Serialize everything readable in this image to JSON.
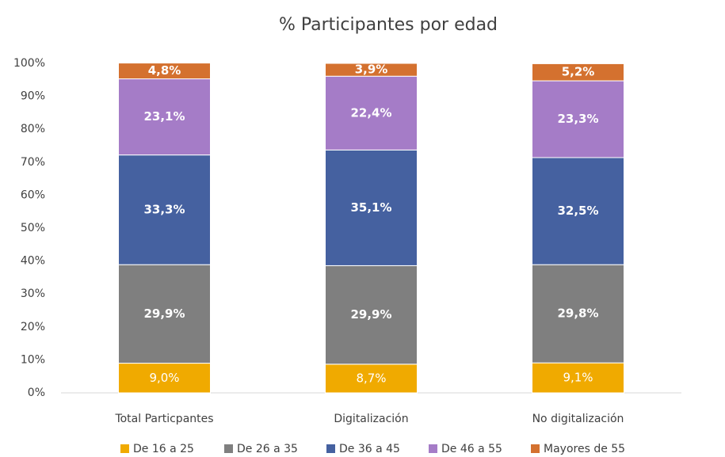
{
  "chart_data": {
    "type": "stacked_bar",
    "title": "% Participantes por edad",
    "categories": [
      "Total Particpantes",
      "Digitalización",
      "No digitalización"
    ],
    "series": [
      {
        "name": "De 16 a 25",
        "color": "#f0aa00",
        "values": [
          9.0,
          8.7,
          9.1
        ],
        "value_labels": [
          "9,0%",
          "8,7%",
          "9,1%"
        ]
      },
      {
        "name": "De 26 a 35",
        "color": "#7f7f7f",
        "values": [
          29.9,
          29.9,
          29.8
        ],
        "value_labels": [
          "29,9%",
          "29,9%",
          "29,8%"
        ]
      },
      {
        "name": "De 36 a 45",
        "color": "#4561a0",
        "values": [
          33.3,
          35.1,
          32.5
        ],
        "value_labels": [
          "33,3%",
          "35,1%",
          "32,5%"
        ]
      },
      {
        "name": "De 46 a 55",
        "color": "#a57cc7",
        "values": [
          23.1,
          22.4,
          23.3
        ],
        "value_labels": [
          "23,1%",
          "22,4%",
          "23,3%"
        ]
      },
      {
        "name": "Mayores de 55",
        "color": "#d4712f",
        "values": [
          4.8,
          3.9,
          5.2
        ],
        "value_labels": [
          "4,8%",
          "3,9%",
          "5,2%"
        ]
      }
    ],
    "ylim": [
      0,
      100
    ],
    "yticks": [
      {
        "value": 0,
        "label": "0%"
      },
      {
        "value": 10,
        "label": "10%"
      },
      {
        "value": 20,
        "label": "20%"
      },
      {
        "value": 30,
        "label": "30%"
      },
      {
        "value": 40,
        "label": "40%"
      },
      {
        "value": 50,
        "label": "50%"
      },
      {
        "value": 60,
        "label": "60%"
      },
      {
        "value": 70,
        "label": "70%"
      },
      {
        "value": 80,
        "label": "80%"
      },
      {
        "value": 90,
        "label": "90%"
      },
      {
        "value": 100,
        "label": "100%"
      }
    ],
    "grid": false,
    "legend": "bottom"
  }
}
